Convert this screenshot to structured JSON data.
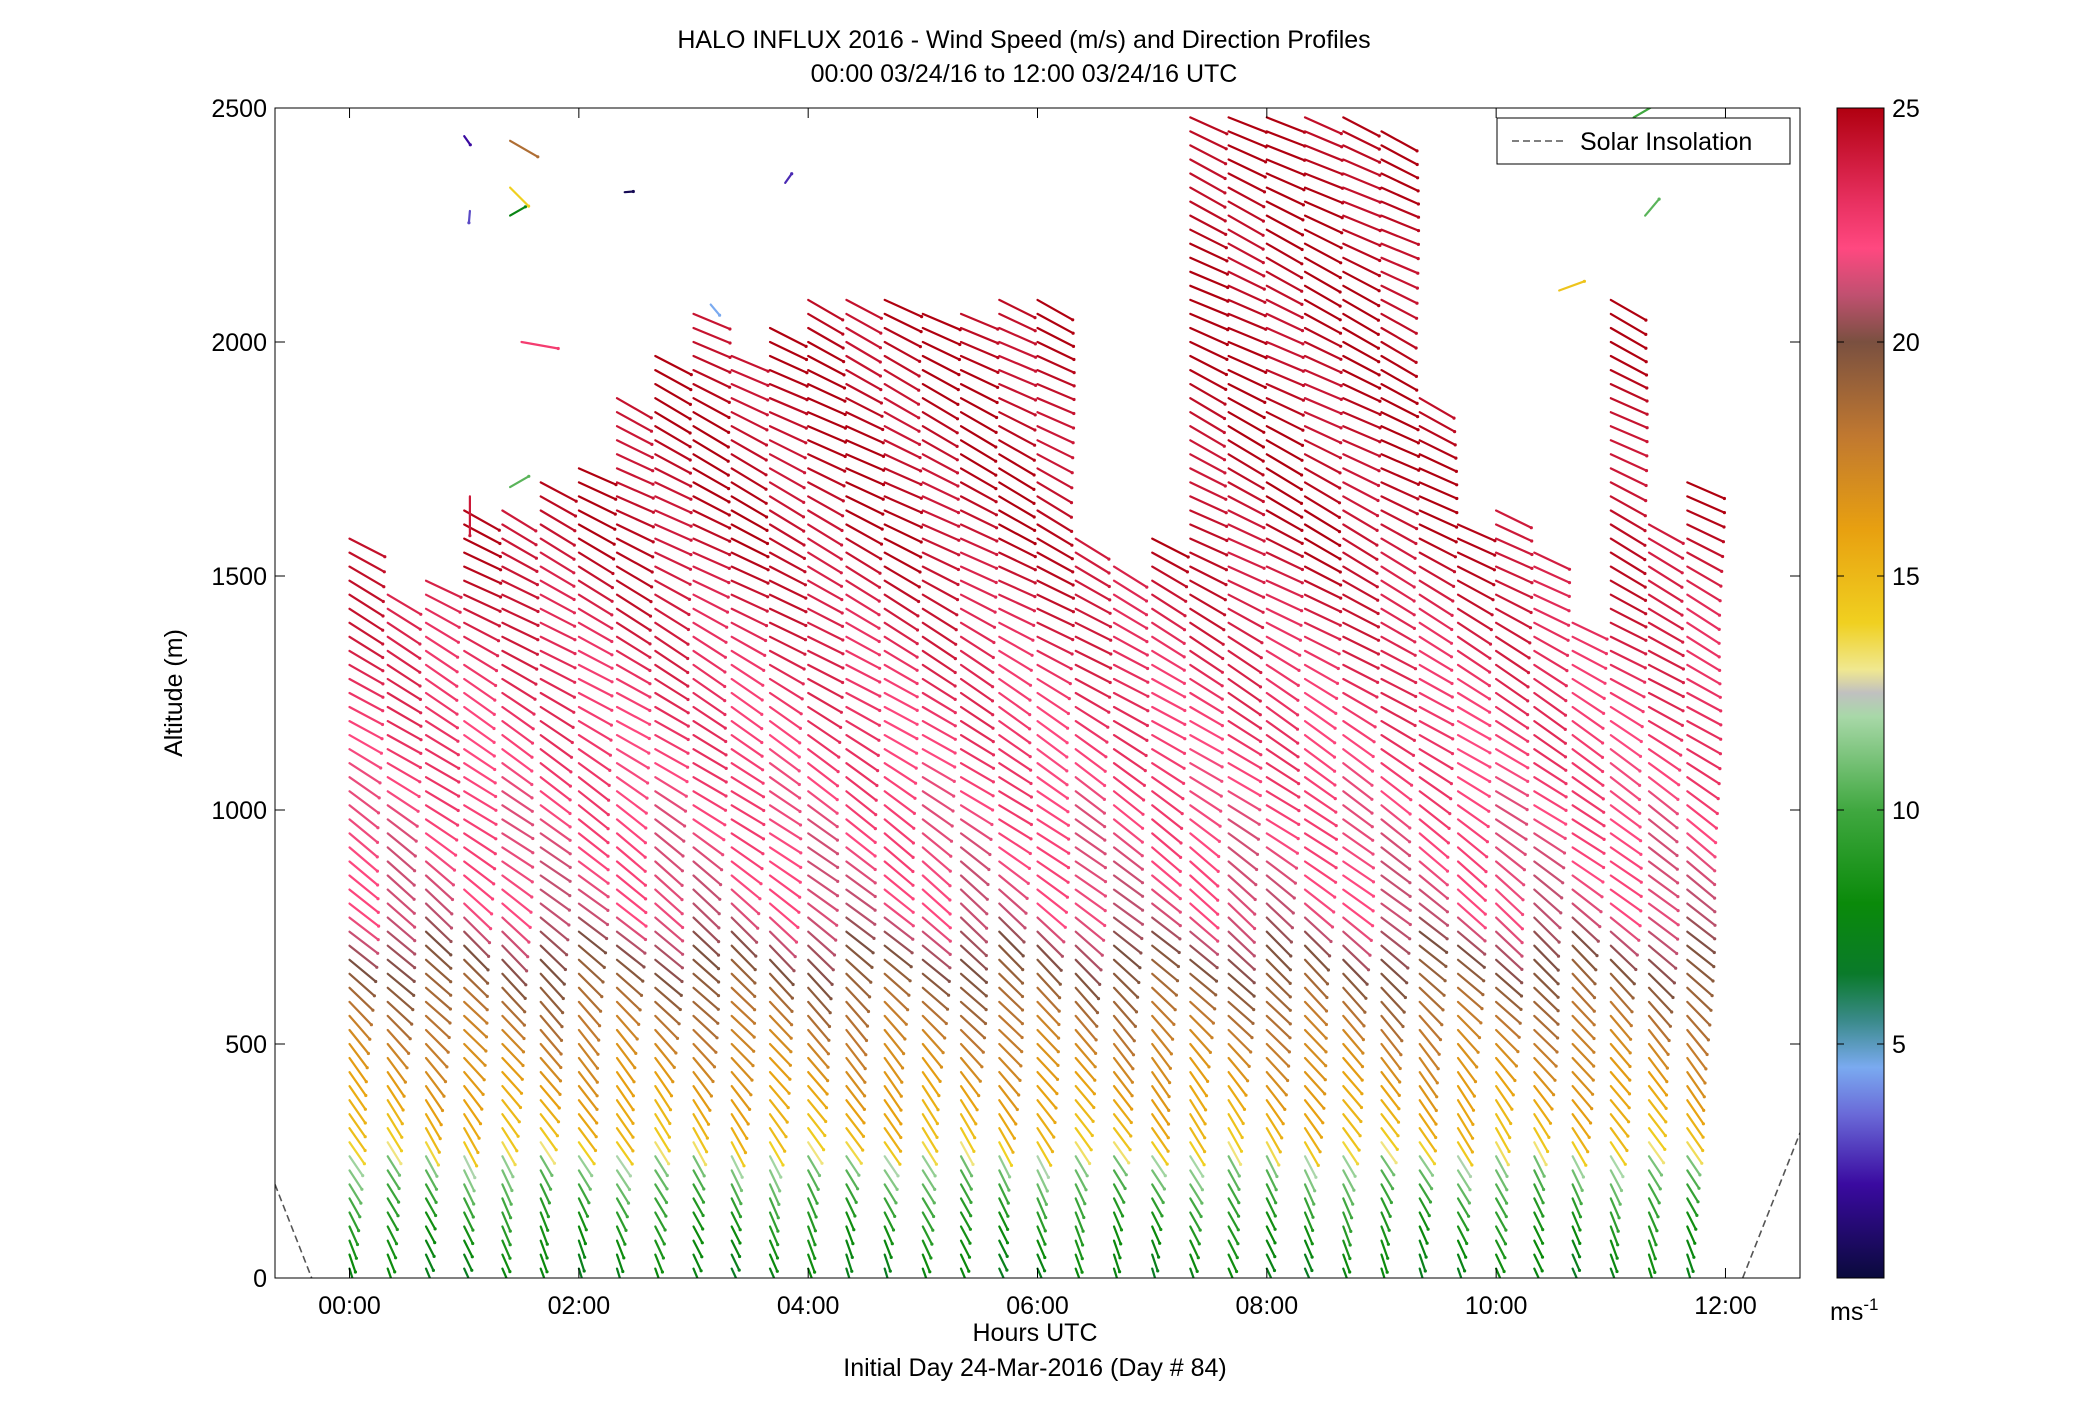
{
  "chart_data": {
    "type": "wind-barb-profile",
    "title": "HALO INFLUX 2016 - Wind Speed (m/s) and Direction Profiles",
    "subtitle": "00:00 03/24/16 to 12:00 03/24/16  UTC",
    "xlabel": "Hours UTC",
    "xlabel2": "Initial Day 24-Mar-2016 (Day # 84)",
    "ylabel": "Altitude (m)",
    "xlim": [
      -0.65,
      12.65
    ],
    "ylim": [
      0,
      2500
    ],
    "x_ticks": [
      {
        "value": 0,
        "label": "00:00"
      },
      {
        "value": 2,
        "label": "02:00"
      },
      {
        "value": 4,
        "label": "04:00"
      },
      {
        "value": 6,
        "label": "06:00"
      },
      {
        "value": 8,
        "label": "08:00"
      },
      {
        "value": 10,
        "label": "10:00"
      },
      {
        "value": 12,
        "label": "12:00"
      }
    ],
    "y_ticks": [
      {
        "value": 0,
        "label": "0"
      },
      {
        "value": 500,
        "label": "500"
      },
      {
        "value": 1000,
        "label": "1000"
      },
      {
        "value": 1500,
        "label": "1500"
      },
      {
        "value": 2000,
        "label": "2000"
      },
      {
        "value": 2500,
        "label": "2500"
      }
    ],
    "legend": {
      "label": "Solar Insolation",
      "position": "top-right",
      "style": "dashed",
      "color": "#555555"
    },
    "solar_insolation": [
      {
        "x": -0.65,
        "y": 200
      },
      {
        "x": -0.33,
        "y": 0
      },
      {
        "x": 12.15,
        "y": 0
      },
      {
        "x": 12.65,
        "y": 310
      }
    ],
    "colorbar": {
      "min": 0,
      "max": 25,
      "unit_label": "ms",
      "unit_exponent": "-1",
      "ticks": [
        {
          "value": 5,
          "label": "5"
        },
        {
          "value": 10,
          "label": "10"
        },
        {
          "value": 15,
          "label": "15"
        },
        {
          "value": 20,
          "label": "20"
        },
        {
          "value": 25,
          "label": "25"
        }
      ],
      "stops": [
        {
          "v": 0,
          "color": "#0a0a3c"
        },
        {
          "v": 2,
          "color": "#3a0aa0"
        },
        {
          "v": 3.5,
          "color": "#6a6ad8"
        },
        {
          "v": 4.5,
          "color": "#7aaaf0"
        },
        {
          "v": 5.5,
          "color": "#3a8a8a"
        },
        {
          "v": 6.5,
          "color": "#0a7a2a"
        },
        {
          "v": 8,
          "color": "#0a8a0a"
        },
        {
          "v": 10,
          "color": "#40a840"
        },
        {
          "v": 12,
          "color": "#a8d8a8"
        },
        {
          "v": 12.5,
          "color": "#c0c0c0"
        },
        {
          "v": 13,
          "color": "#f0e890"
        },
        {
          "v": 14,
          "color": "#f0d020"
        },
        {
          "v": 16,
          "color": "#e8a010"
        },
        {
          "v": 18,
          "color": "#c07830"
        },
        {
          "v": 20,
          "color": "#7a5040"
        },
        {
          "v": 21,
          "color": "#c05070"
        },
        {
          "v": 22,
          "color": "#ff4880"
        },
        {
          "v": 23,
          "color": "#e83060"
        },
        {
          "v": 25,
          "color": "#b00010"
        }
      ]
    },
    "profile_times": [
      0.0,
      0.333,
      0.667,
      1.0,
      1.333,
      1.667,
      2.0,
      2.333,
      2.667,
      3.0,
      3.333,
      3.667,
      4.0,
      4.333,
      4.667,
      5.0,
      5.333,
      5.667,
      6.0,
      6.333,
      6.667,
      7.0,
      7.333,
      7.667,
      8.0,
      8.333,
      8.667,
      9.0,
      9.333,
      9.667,
      10.0,
      10.333,
      10.667,
      11.0,
      11.333,
      11.667
    ],
    "profile_tops_m": [
      1600,
      1480,
      1500,
      1650,
      1640,
      1710,
      1750,
      1890,
      1990,
      2080,
      1990,
      2050,
      2100,
      2090,
      2100,
      2080,
      2060,
      2090,
      2100,
      1580,
      1540,
      1590,
      2490,
      2500,
      2490,
      2490,
      2480,
      2460,
      1900,
      1620,
      1640,
      1560,
      1420,
      2110,
      1620,
      1700
    ],
    "speed_profile": [
      {
        "alt": 0,
        "speed": 7
      },
      {
        "alt": 150,
        "speed": 9
      },
      {
        "alt": 260,
        "speed": 11.5
      },
      {
        "alt": 300,
        "speed": 14.5
      },
      {
        "alt": 450,
        "speed": 16.5
      },
      {
        "alt": 600,
        "speed": 18.5
      },
      {
        "alt": 800,
        "speed": 21.5
      },
      {
        "alt": 1000,
        "speed": 22
      },
      {
        "alt": 1300,
        "speed": 23
      },
      {
        "alt": 1600,
        "speed": 24.5
      },
      {
        "alt": 2500,
        "speed": 25
      }
    ],
    "direction_profile_deg": [
      {
        "alt": 0,
        "dir": 160
      },
      {
        "alt": 300,
        "dir": 148
      },
      {
        "alt": 600,
        "dir": 135
      },
      {
        "alt": 1000,
        "dir": 125
      },
      {
        "alt": 1500,
        "dir": 118
      },
      {
        "alt": 2500,
        "dir": 115
      }
    ],
    "barb_altitude_step_m": 30,
    "isolated_barbs": [
      {
        "x": 1.0,
        "y": 2440,
        "speed": 2,
        "dir": 145
      },
      {
        "x": 1.4,
        "y": 2430,
        "speed": 18.5,
        "dir": 120
      },
      {
        "x": 1.4,
        "y": 2330,
        "speed": 14,
        "dir": 135
      },
      {
        "x": 1.05,
        "y": 2280,
        "speed": 3,
        "dir": 185
      },
      {
        "x": 1.4,
        "y": 2270,
        "speed": 7.5,
        "dir": 60
      },
      {
        "x": 2.4,
        "y": 2320,
        "speed": 0.5,
        "dir": 85
      },
      {
        "x": 3.8,
        "y": 2340,
        "speed": 2.5,
        "dir": 35
      },
      {
        "x": 3.15,
        "y": 2080,
        "speed": 4.5,
        "dir": 140
      },
      {
        "x": 1.5,
        "y": 2000,
        "speed": 22.5,
        "dir": 100
      },
      {
        "x": 1.05,
        "y": 1670,
        "speed": 24,
        "dir": 180
      },
      {
        "x": 1.4,
        "y": 1690,
        "speed": 10.5,
        "dir": 60
      },
      {
        "x": 10.55,
        "y": 2110,
        "speed": 14.5,
        "dir": 70
      },
      {
        "x": 11.2,
        "y": 2480,
        "speed": 10,
        "dir": 60
      },
      {
        "x": 11.3,
        "y": 2270,
        "speed": 10.5,
        "dir": 40
      }
    ]
  }
}
